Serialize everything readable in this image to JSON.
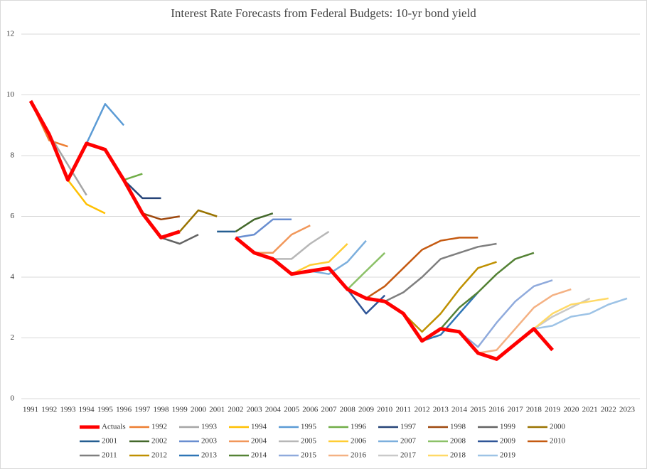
{
  "chart_data": {
    "type": "line",
    "title": "Interest Rate Forecasts from Federal Budgets: 10-yr bond yield",
    "categories": [
      "1991",
      "1992",
      "1993",
      "1994",
      "1995",
      "1996",
      "1997",
      "1998",
      "1999",
      "2000",
      "2001",
      "2002",
      "2003",
      "2004",
      "2005",
      "2006",
      "2007",
      "2008",
      "2009",
      "2010",
      "2011",
      "2012",
      "2013",
      "2014",
      "2015",
      "2016",
      "2017",
      "2018",
      "2019",
      "2020",
      "2021",
      "2022",
      "2023"
    ],
    "ylim": [
      0,
      12
    ],
    "yticks": [
      0,
      2,
      4,
      6,
      8,
      10,
      12
    ],
    "grid": true,
    "legend": "bottom",
    "series": [
      {
        "name": "Actuals",
        "color": "#ff0000",
        "values": [
          9.8,
          8.7,
          7.2,
          8.4,
          8.2,
          7.2,
          6.1,
          5.3,
          5.5,
          null,
          null,
          5.3,
          4.8,
          4.6,
          4.1,
          4.2,
          4.3,
          3.6,
          3.3,
          3.2,
          2.8,
          1.9,
          2.3,
          2.2,
          1.5,
          1.3,
          1.8,
          2.3,
          1.6,
          null,
          null,
          null,
          null
        ]
      },
      {
        "name": "1992",
        "color": "#ed7d31",
        "values": [
          9.8,
          8.5,
          8.3,
          null,
          null,
          null,
          null,
          null,
          null,
          null,
          null,
          null,
          null,
          null,
          null,
          null,
          null,
          null,
          null,
          null,
          null,
          null,
          null,
          null,
          null,
          null,
          null,
          null,
          null,
          null,
          null,
          null,
          null
        ]
      },
      {
        "name": "1993",
        "color": "#a5a5a5",
        "values": [
          null,
          8.7,
          7.7,
          6.7,
          null,
          null,
          null,
          null,
          null,
          null,
          null,
          null,
          null,
          null,
          null,
          null,
          null,
          null,
          null,
          null,
          null,
          null,
          null,
          null,
          null,
          null,
          null,
          null,
          null,
          null,
          null,
          null,
          null
        ]
      },
      {
        "name": "1994",
        "color": "#ffc000",
        "values": [
          null,
          null,
          7.2,
          6.4,
          6.1,
          null,
          null,
          null,
          null,
          null,
          null,
          null,
          null,
          null,
          null,
          null,
          null,
          null,
          null,
          null,
          null,
          null,
          null,
          null,
          null,
          null,
          null,
          null,
          null,
          null,
          null,
          null,
          null
        ]
      },
      {
        "name": "1995",
        "color": "#5b9bd5",
        "values": [
          null,
          null,
          7.2,
          8.4,
          9.7,
          9.0,
          null,
          null,
          null,
          null,
          null,
          null,
          null,
          null,
          null,
          null,
          null,
          null,
          null,
          null,
          null,
          null,
          null,
          null,
          null,
          null,
          null,
          null,
          null,
          null,
          null,
          null,
          null
        ]
      },
      {
        "name": "1996",
        "color": "#70ad47",
        "values": [
          null,
          null,
          null,
          null,
          null,
          7.2,
          7.4,
          null,
          null,
          null,
          null,
          null,
          null,
          null,
          null,
          null,
          null,
          null,
          null,
          null,
          null,
          null,
          null,
          null,
          null,
          null,
          null,
          null,
          null,
          null,
          null,
          null,
          null
        ]
      },
      {
        "name": "1997",
        "color": "#264478",
        "values": [
          null,
          null,
          null,
          null,
          null,
          7.2,
          6.6,
          6.6,
          null,
          null,
          null,
          null,
          null,
          null,
          null,
          null,
          null,
          null,
          null,
          null,
          null,
          null,
          null,
          null,
          null,
          null,
          null,
          null,
          null,
          null,
          null,
          null,
          null
        ]
      },
      {
        "name": "1998",
        "color": "#9e480e",
        "values": [
          null,
          null,
          null,
          null,
          null,
          null,
          6.1,
          5.9,
          6.0,
          null,
          null,
          null,
          null,
          null,
          null,
          null,
          null,
          null,
          null,
          null,
          null,
          null,
          null,
          null,
          null,
          null,
          null,
          null,
          null,
          null,
          null,
          null,
          null
        ]
      },
      {
        "name": "1999",
        "color": "#636363",
        "values": [
          null,
          null,
          null,
          null,
          null,
          null,
          null,
          5.3,
          5.1,
          5.4,
          null,
          null,
          null,
          null,
          null,
          null,
          null,
          null,
          null,
          null,
          null,
          null,
          null,
          null,
          null,
          null,
          null,
          null,
          null,
          null,
          null,
          null,
          null
        ]
      },
      {
        "name": "2000",
        "color": "#997300",
        "values": [
          null,
          null,
          null,
          null,
          null,
          null,
          null,
          null,
          5.5,
          6.2,
          6.0,
          null,
          null,
          null,
          null,
          null,
          null,
          null,
          null,
          null,
          null,
          null,
          null,
          null,
          null,
          null,
          null,
          null,
          null,
          null,
          null,
          null,
          null
        ]
      },
      {
        "name": "2001",
        "color": "#255e91",
        "values": [
          null,
          null,
          null,
          null,
          null,
          null,
          null,
          null,
          null,
          null,
          5.5,
          5.5,
          null,
          null,
          null,
          null,
          null,
          null,
          null,
          null,
          null,
          null,
          null,
          null,
          null,
          null,
          null,
          null,
          null,
          null,
          null,
          null,
          null
        ]
      },
      {
        "name": "2002",
        "color": "#43682b",
        "values": [
          null,
          null,
          null,
          null,
          null,
          null,
          null,
          null,
          null,
          null,
          null,
          5.5,
          5.9,
          6.1,
          null,
          null,
          null,
          null,
          null,
          null,
          null,
          null,
          null,
          null,
          null,
          null,
          null,
          null,
          null,
          null,
          null,
          null,
          null
        ]
      },
      {
        "name": "2003",
        "color": "#698ed0",
        "values": [
          null,
          null,
          null,
          null,
          null,
          null,
          null,
          null,
          null,
          null,
          null,
          5.3,
          5.4,
          5.9,
          5.9,
          null,
          null,
          null,
          null,
          null,
          null,
          null,
          null,
          null,
          null,
          null,
          null,
          null,
          null,
          null,
          null,
          null,
          null
        ]
      },
      {
        "name": "2004",
        "color": "#f1975a",
        "values": [
          null,
          null,
          null,
          null,
          null,
          null,
          null,
          null,
          null,
          null,
          null,
          null,
          4.8,
          4.8,
          5.4,
          5.7,
          null,
          null,
          null,
          null,
          null,
          null,
          null,
          null,
          null,
          null,
          null,
          null,
          null,
          null,
          null,
          null,
          null
        ]
      },
      {
        "name": "2005",
        "color": "#b7b7b7",
        "values": [
          null,
          null,
          null,
          null,
          null,
          null,
          null,
          null,
          null,
          null,
          null,
          null,
          null,
          4.6,
          4.6,
          5.1,
          5.5,
          null,
          null,
          null,
          null,
          null,
          null,
          null,
          null,
          null,
          null,
          null,
          null,
          null,
          null,
          null,
          null
        ]
      },
      {
        "name": "2006",
        "color": "#ffcd33",
        "values": [
          null,
          null,
          null,
          null,
          null,
          null,
          null,
          null,
          null,
          null,
          null,
          null,
          null,
          null,
          4.1,
          4.4,
          4.5,
          5.1,
          null,
          null,
          null,
          null,
          null,
          null,
          null,
          null,
          null,
          null,
          null,
          null,
          null,
          null,
          null
        ]
      },
      {
        "name": "2007",
        "color": "#7cafdd",
        "values": [
          null,
          null,
          null,
          null,
          null,
          null,
          null,
          null,
          null,
          null,
          null,
          null,
          null,
          null,
          null,
          4.2,
          4.1,
          4.5,
          5.2,
          null,
          null,
          null,
          null,
          null,
          null,
          null,
          null,
          null,
          null,
          null,
          null,
          null,
          null
        ]
      },
      {
        "name": "2008",
        "color": "#8cc168",
        "values": [
          null,
          null,
          null,
          null,
          null,
          null,
          null,
          null,
          null,
          null,
          null,
          null,
          null,
          null,
          null,
          null,
          null,
          3.6,
          4.2,
          4.8,
          null,
          null,
          null,
          null,
          null,
          null,
          null,
          null,
          null,
          null,
          null,
          null,
          null
        ]
      },
      {
        "name": "2009",
        "color": "#2f5597",
        "values": [
          null,
          null,
          null,
          null,
          null,
          null,
          null,
          null,
          null,
          null,
          null,
          null,
          null,
          null,
          null,
          null,
          null,
          3.6,
          2.8,
          3.4,
          null,
          null,
          null,
          null,
          null,
          null,
          null,
          null,
          null,
          null,
          null,
          null,
          null
        ]
      },
      {
        "name": "2010",
        "color": "#c55a11",
        "values": [
          null,
          null,
          null,
          null,
          null,
          null,
          null,
          null,
          null,
          null,
          null,
          null,
          null,
          null,
          null,
          null,
          null,
          null,
          3.3,
          3.7,
          4.3,
          4.9,
          5.2,
          5.3,
          5.3,
          null,
          null,
          null,
          null,
          null,
          null,
          null,
          null
        ]
      },
      {
        "name": "2011",
        "color": "#7f7f7f",
        "values": [
          null,
          null,
          null,
          null,
          null,
          null,
          null,
          null,
          null,
          null,
          null,
          null,
          null,
          null,
          null,
          null,
          null,
          null,
          null,
          3.2,
          3.5,
          4.0,
          4.6,
          4.8,
          5.0,
          5.1,
          null,
          null,
          null,
          null,
          null,
          null,
          null
        ]
      },
      {
        "name": "2012",
        "color": "#bf9000",
        "values": [
          null,
          null,
          null,
          null,
          null,
          null,
          null,
          null,
          null,
          null,
          null,
          null,
          null,
          null,
          null,
          null,
          null,
          null,
          null,
          null,
          2.8,
          2.2,
          2.8,
          3.6,
          4.3,
          4.5,
          null,
          null,
          null,
          null,
          null,
          null,
          null
        ]
      },
      {
        "name": "2013",
        "color": "#2e75b6",
        "values": [
          null,
          null,
          null,
          null,
          null,
          null,
          null,
          null,
          null,
          null,
          null,
          null,
          null,
          null,
          null,
          null,
          null,
          null,
          null,
          null,
          null,
          1.9,
          2.1,
          2.8,
          3.5,
          null,
          null,
          null,
          null,
          null,
          null,
          null,
          null
        ]
      },
      {
        "name": "2014",
        "color": "#548235",
        "values": [
          null,
          null,
          null,
          null,
          null,
          null,
          null,
          null,
          null,
          null,
          null,
          null,
          null,
          null,
          null,
          null,
          null,
          null,
          null,
          null,
          null,
          null,
          2.3,
          3.0,
          3.5,
          4.1,
          4.6,
          4.8,
          null,
          null,
          null,
          null,
          null
        ]
      },
      {
        "name": "2015",
        "color": "#8faadc",
        "values": [
          null,
          null,
          null,
          null,
          null,
          null,
          null,
          null,
          null,
          null,
          null,
          null,
          null,
          null,
          null,
          null,
          null,
          null,
          null,
          null,
          null,
          null,
          null,
          2.2,
          1.7,
          2.5,
          3.2,
          3.7,
          3.9,
          null,
          null,
          null,
          null
        ]
      },
      {
        "name": "2016",
        "color": "#f4b183",
        "values": [
          null,
          null,
          null,
          null,
          null,
          null,
          null,
          null,
          null,
          null,
          null,
          null,
          null,
          null,
          null,
          null,
          null,
          null,
          null,
          null,
          null,
          null,
          null,
          null,
          1.5,
          1.6,
          2.3,
          3.0,
          3.4,
          3.6,
          null,
          null,
          null
        ]
      },
      {
        "name": "2017",
        "color": "#c9c9c9",
        "values": [
          null,
          null,
          null,
          null,
          null,
          null,
          null,
          null,
          null,
          null,
          null,
          null,
          null,
          null,
          null,
          null,
          null,
          null,
          null,
          null,
          null,
          null,
          null,
          null,
          null,
          1.3,
          1.8,
          2.3,
          2.7,
          3.0,
          3.3,
          null,
          null
        ]
      },
      {
        "name": "2018",
        "color": "#ffd966",
        "values": [
          null,
          null,
          null,
          null,
          null,
          null,
          null,
          null,
          null,
          null,
          null,
          null,
          null,
          null,
          null,
          null,
          null,
          null,
          null,
          null,
          null,
          null,
          null,
          null,
          null,
          null,
          1.8,
          2.3,
          2.8,
          3.1,
          3.2,
          3.3,
          null
        ]
      },
      {
        "name": "2019",
        "color": "#9dc3e6",
        "values": [
          null,
          null,
          null,
          null,
          null,
          null,
          null,
          null,
          null,
          null,
          null,
          null,
          null,
          null,
          null,
          null,
          null,
          null,
          null,
          null,
          null,
          null,
          null,
          null,
          null,
          null,
          null,
          2.3,
          2.4,
          2.7,
          2.8,
          3.1,
          3.3
        ]
      }
    ]
  }
}
